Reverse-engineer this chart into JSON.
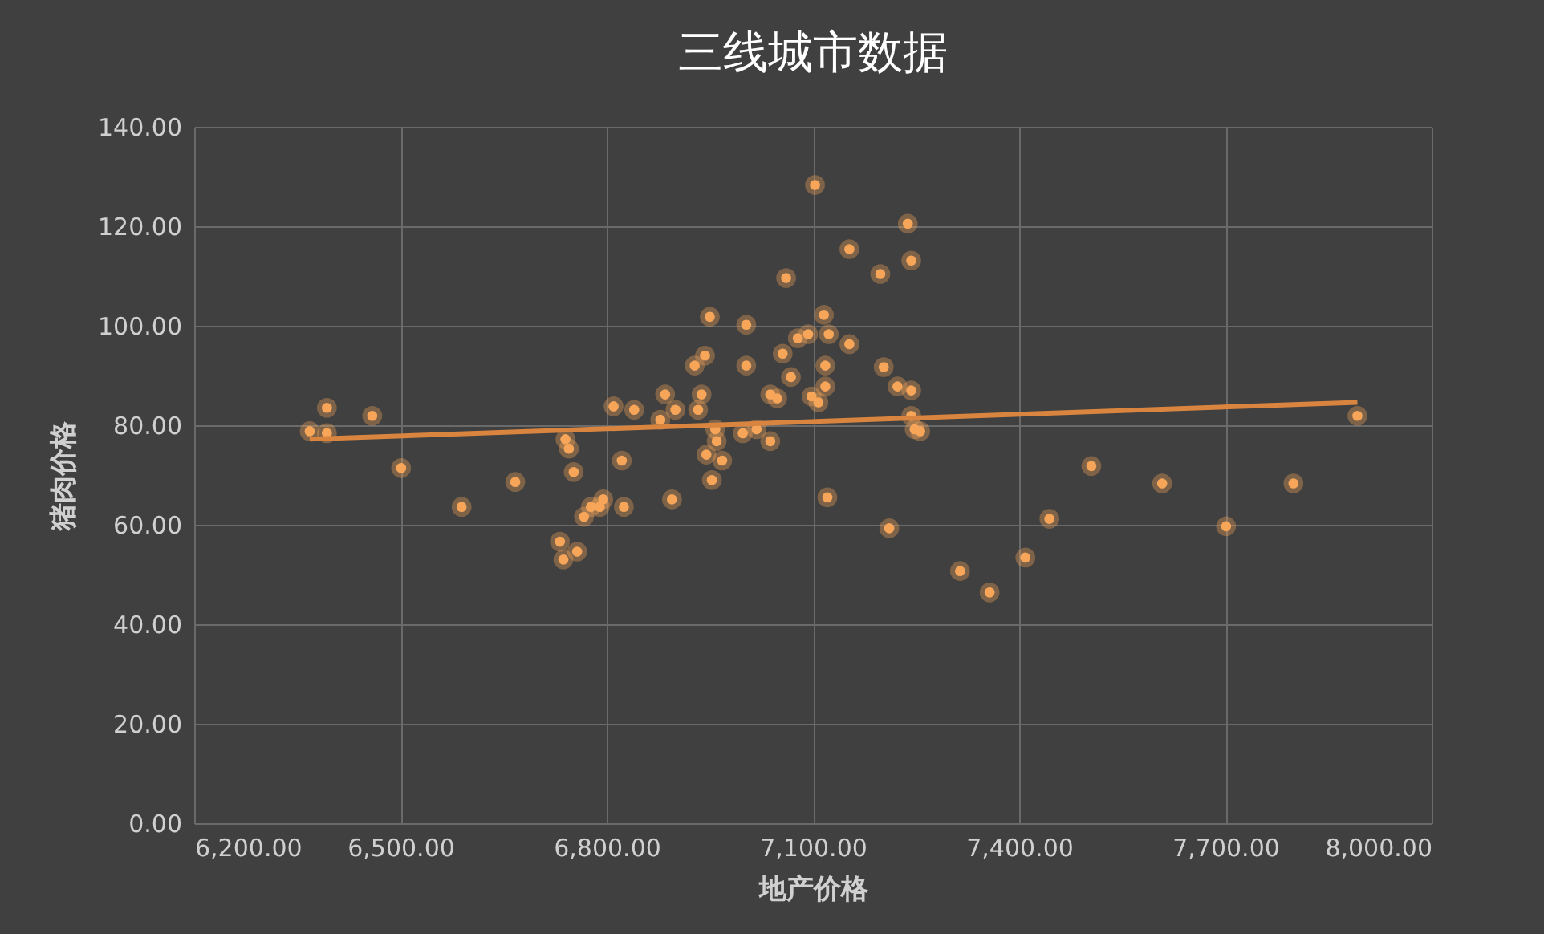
{
  "chart_data": {
    "type": "scatter",
    "title": "三线城市数据",
    "xlabel": "地产价格",
    "ylabel": "猪肉价格",
    "xlim": [
      6200,
      8000
    ],
    "ylim": [
      0,
      140
    ],
    "xticks": [
      {
        "value": 6200,
        "label": "6,200.00"
      },
      {
        "value": 6500,
        "label": "6,500.00"
      },
      {
        "value": 6800,
        "label": "6,800.00"
      },
      {
        "value": 7100,
        "label": "7,100.00"
      },
      {
        "value": 7400,
        "label": "7,400.00"
      },
      {
        "value": 7700,
        "label": "7,700.00"
      },
      {
        "value": 8000,
        "label": "8,000.00"
      }
    ],
    "yticks": [
      {
        "value": 0,
        "label": "0.00"
      },
      {
        "value": 20,
        "label": "20.00"
      },
      {
        "value": 40,
        "label": "40.00"
      },
      {
        "value": 60,
        "label": "60.00"
      },
      {
        "value": 80,
        "label": "80.00"
      },
      {
        "value": 100,
        "label": "100.00"
      },
      {
        "value": 120,
        "label": "120.00"
      },
      {
        "value": 140,
        "label": "140.00"
      }
    ],
    "grid": true,
    "series": [
      {
        "color": "#f7a65a",
        "marker": "circle",
        "x": [
          6368,
          6393,
          6393,
          6459,
          6501,
          6589,
          6667,
          6732,
          6737,
          6740,
          6745,
          6752,
          6757,
          6767,
          6777,
          6790,
          6795,
          6810,
          6822,
          6825,
          6840,
          6878,
          6885,
          6895,
          6900,
          6928,
          6933,
          6938,
          6943,
          6945,
          6950,
          6953,
          6958,
          6960,
          6968,
          6998,
          7003,
          7003,
          7018,
          7038,
          7038,
          7048,
          7056,
          7061,
          7068,
          7078,
          7093,
          7098,
          7103,
          7108,
          7116,
          7118,
          7118,
          7121,
          7123,
          7153,
          7153,
          7198,
          7203,
          7211,
          7223,
          7238,
          7243,
          7243,
          7243,
          7248,
          7256,
          7314,
          7357,
          7409,
          7444,
          7505,
          7608,
          7701,
          7799,
          7892
        ],
        "values": [
          78.8,
          83.5,
          78.4,
          81.9,
          71.4,
          63.6,
          68.6,
          56.6,
          53.0,
          77.2,
          75.3,
          70.6,
          54.6,
          61.6,
          63.6,
          63.6,
          65.1,
          83.8,
          72.9,
          63.6,
          83.1,
          81.1,
          86.2,
          65.1,
          83.1,
          92.0,
          83.1,
          86.2,
          94.0,
          74.1,
          101.8,
          69.0,
          79.2,
          76.8,
          72.9,
          78.4,
          100.2,
          92.0,
          79.2,
          76.8,
          86.2,
          85.4,
          94.4,
          109.6,
          89.7,
          97.5,
          98.3,
          85.8,
          128.3,
          84.6,
          102.2,
          87.8,
          92.0,
          65.5,
          98.3,
          96.3,
          115.4,
          110.4,
          91.7,
          59.3,
          87.8,
          120.5,
          113.1,
          87.0,
          81.9,
          79.2,
          78.8,
          50.7,
          46.4,
          53.4,
          61.2,
          71.8,
          68.3,
          59.7,
          68.3,
          81.9
        ]
      },
      {
        "type": "line",
        "color": "#d9843f",
        "x": [
          6368,
          7892
        ],
        "values": [
          77.2,
          84.6
        ],
        "marker": "none"
      }
    ]
  }
}
